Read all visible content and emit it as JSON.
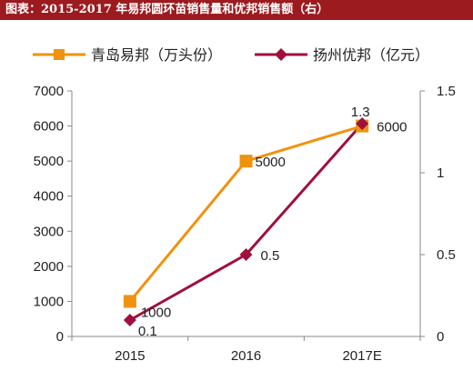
{
  "header": {
    "title": "图表：2015-2017 年易邦圆环苗销售量和优邦销售额（右）"
  },
  "chart_data": {
    "type": "line",
    "categories": [
      "2015",
      "2016",
      "2017E"
    ],
    "series": [
      {
        "name": "青岛易邦（万头份）",
        "axis": "left",
        "color": "#f0920f",
        "marker": "square",
        "values": [
          1000,
          5000,
          6000
        ],
        "labels": [
          "1000",
          "5000",
          "6000"
        ]
      },
      {
        "name": "扬州优邦（亿元）",
        "axis": "right",
        "color": "#a0103c",
        "marker": "diamond",
        "values": [
          0.1,
          0.5,
          1.3
        ],
        "labels": [
          "0.1",
          "0.5",
          "1.3"
        ]
      }
    ],
    "y_left": {
      "min": 0,
      "max": 7000,
      "ticks": [
        "0",
        "1000",
        "2000",
        "3000",
        "4000",
        "5000",
        "6000",
        "7000"
      ]
    },
    "y_right": {
      "min": 0,
      "max": 1.5,
      "ticks": [
        "0",
        "0.5",
        "1",
        "1.5"
      ]
    },
    "legend": "top",
    "grid": false
  }
}
